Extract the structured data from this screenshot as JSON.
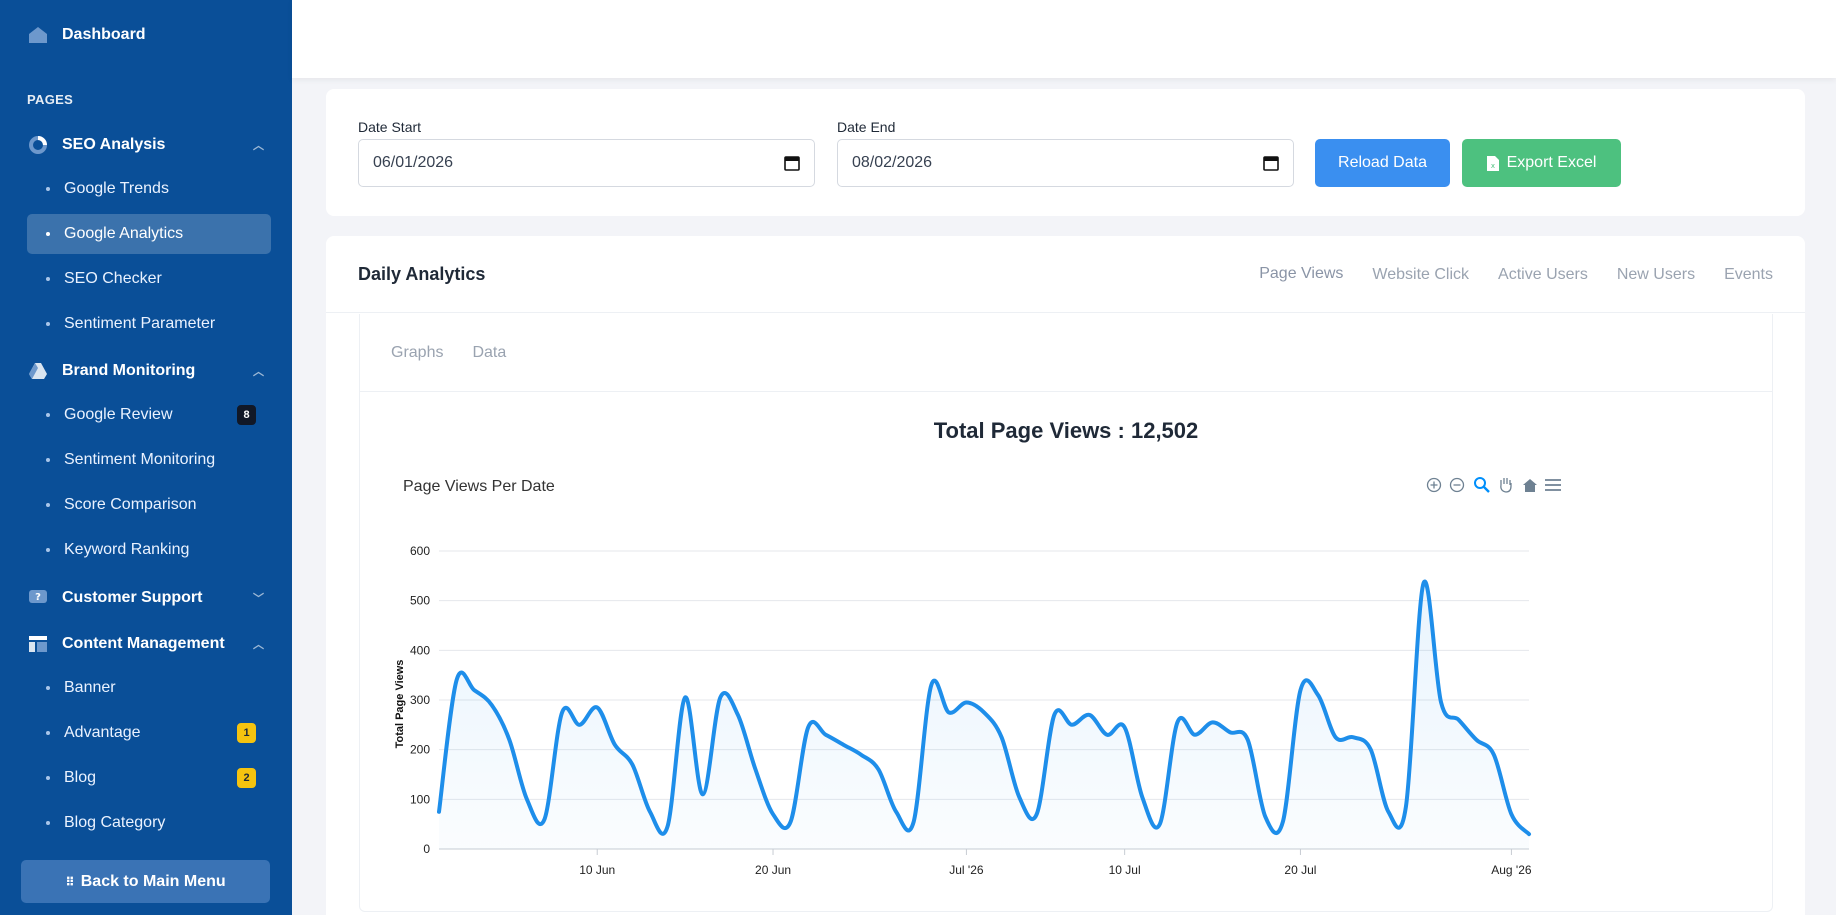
{
  "sidebar": {
    "dashboard": "Dashboard",
    "pages_heading": "PAGES",
    "seo_analysis": {
      "label": "SEO Analysis",
      "items": [
        "Google Trends",
        "Google Analytics",
        "SEO Checker",
        "Sentiment Parameter"
      ],
      "active": "Google Analytics"
    },
    "brand_monitoring": {
      "label": "Brand Monitoring",
      "items": [
        "Google Review",
        "Sentiment Monitoring",
        "Score Comparison",
        "Keyword Ranking"
      ],
      "google_review_badge": "8"
    },
    "customer_support": {
      "label": "Customer Support"
    },
    "content_management": {
      "label": "Content Management",
      "items": [
        "Banner",
        "Advantage",
        "Blog",
        "Blog Category"
      ],
      "advantage_badge": "1",
      "blog_badge": "2"
    },
    "back_button": "Back to Main Menu"
  },
  "filters": {
    "date_start_label": "Date Start",
    "date_start_value": "06/01/2026",
    "date_end_label": "Date End",
    "date_end_value": "08/02/2026",
    "reload_label": "Reload Data",
    "export_label": "Export Excel"
  },
  "analytics": {
    "title": "Daily Analytics",
    "tabs": [
      "Page Views",
      "Website Click",
      "Active Users",
      "New Users",
      "Events"
    ],
    "active_tab": "Page Views",
    "sub_tabs": [
      "Graphs",
      "Data"
    ],
    "active_sub_tab": "Graphs",
    "total_label": "Total Page Views : 12,502"
  },
  "colors": {
    "sidebar_bg": "#0a4f98",
    "accent": "#3a8ff0",
    "export": "#4dc17f",
    "line": "#1e8eea"
  },
  "chart_data": {
    "type": "area",
    "title": "Page Views Per Date",
    "ylabel": "Total Page Views",
    "xlabel": "",
    "ylim": [
      0,
      600
    ],
    "yticks": [
      0,
      100,
      200,
      300,
      400,
      500,
      600
    ],
    "x_tick_labels": [
      "10 Jun",
      "20 Jun",
      "Jul '26",
      "10 Jul",
      "20 Jul",
      "Aug '26"
    ],
    "x_tick_dates": [
      "2026-06-10",
      "2026-06-20",
      "2026-07-01",
      "2026-07-10",
      "2026-07-20",
      "2026-08-01"
    ],
    "grid": true,
    "toolbar_icons": [
      "zoom-in-icon",
      "zoom-out-icon",
      "zoom-select-icon",
      "pan-hand-icon",
      "home-reset-icon",
      "menu-icon"
    ],
    "series": [
      {
        "x": [
          "2026-06-01",
          "2026-06-02",
          "2026-06-03",
          "2026-06-04",
          "2026-06-05",
          "2026-06-06",
          "2026-06-07",
          "2026-06-08",
          "2026-06-09",
          "2026-06-10",
          "2026-06-11",
          "2026-06-12",
          "2026-06-13",
          "2026-06-14",
          "2026-06-15",
          "2026-06-16",
          "2026-06-17",
          "2026-06-18",
          "2026-06-19",
          "2026-06-20",
          "2026-06-21",
          "2026-06-22",
          "2026-06-23",
          "2026-06-24",
          "2026-06-25",
          "2026-06-26",
          "2026-06-27",
          "2026-06-28",
          "2026-06-29",
          "2026-06-30",
          "2026-07-01",
          "2026-07-02",
          "2026-07-03",
          "2026-07-04",
          "2026-07-05",
          "2026-07-06",
          "2026-07-07",
          "2026-07-08",
          "2026-07-09",
          "2026-07-10",
          "2026-07-11",
          "2026-07-12",
          "2026-07-13",
          "2026-07-14",
          "2026-07-15",
          "2026-07-16",
          "2026-07-17",
          "2026-07-18",
          "2026-07-19",
          "2026-07-20",
          "2026-07-21",
          "2026-07-22",
          "2026-07-23",
          "2026-07-24",
          "2026-07-25",
          "2026-07-26",
          "2026-07-27",
          "2026-07-28",
          "2026-07-29",
          "2026-07-30",
          "2026-07-31",
          "2026-08-01",
          "2026-08-02"
        ],
        "y": [
          75,
          340,
          320,
          290,
          220,
          100,
          60,
          275,
          250,
          285,
          210,
          170,
          75,
          45,
          305,
          110,
          305,
          270,
          160,
          70,
          55,
          245,
          230,
          210,
          190,
          160,
          75,
          55,
          330,
          275,
          295,
          275,
          225,
          105,
          70,
          270,
          250,
          270,
          230,
          245,
          105,
          50,
          255,
          230,
          255,
          235,
          220,
          65,
          55,
          320,
          310,
          225,
          225,
          200,
          75,
          85,
          535,
          295,
          260,
          220,
          190,
          70,
          30
        ]
      }
    ]
  }
}
